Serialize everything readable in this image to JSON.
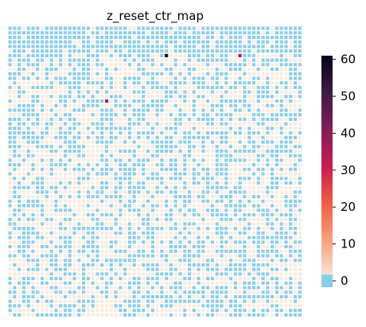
{
  "chart_data": {
    "type": "heatmap",
    "title": "z_reset_ctr_map",
    "xlabel": "",
    "ylabel": "",
    "rows": 64,
    "cols": 64,
    "vmin": 0,
    "vmax": 61,
    "pattern": "mostly 0 (light blue) and 1 (light peach) alternating irregularly",
    "hotspots": [
      {
        "row": 6,
        "col": 34,
        "value": 61
      },
      {
        "row": 6,
        "col": 50,
        "value": 36
      },
      {
        "row": 16,
        "col": 21,
        "value": 36
      }
    ],
    "zero_color": "#87ceeb",
    "colorbar": {
      "ticks": [
        0,
        10,
        20,
        30,
        40,
        50,
        60
      ],
      "tick_labels": [
        "0",
        "10",
        "20",
        "30",
        "40",
        "50",
        "60"
      ],
      "colors": [
        "#faebdd",
        "#f6a47c",
        "#f06043",
        "#cb1b4f",
        "#841e5a",
        "#3f1b44",
        "#03051a"
      ]
    },
    "grid": false
  }
}
